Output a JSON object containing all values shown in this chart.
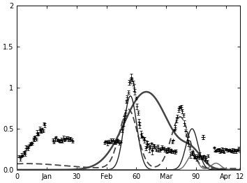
{
  "xlim": [
    0,
    112
  ],
  "ylim": [
    0.0,
    2.0
  ],
  "yticks": [
    0.0,
    0.5,
    1.0,
    1.5,
    2.0
  ],
  "xticks": [
    0,
    15,
    30,
    45,
    60,
    75,
    90,
    105,
    112
  ],
  "xticklabels": [
    "0",
    "Jan",
    "30",
    "Feb",
    "60",
    "Mar",
    "90",
    "Apr",
    "12"
  ],
  "bg_color": "#ffffff",
  "obs_color": "#000000",
  "curve1_color": "#444444",
  "curve2_color": "#222222",
  "curve3_color": "#666666",
  "dashed_color": "#444444",
  "curve1_lw": 1.8,
  "curve2_lw": 1.0,
  "curve3_lw": 1.0,
  "dashed_lw": 1.3
}
